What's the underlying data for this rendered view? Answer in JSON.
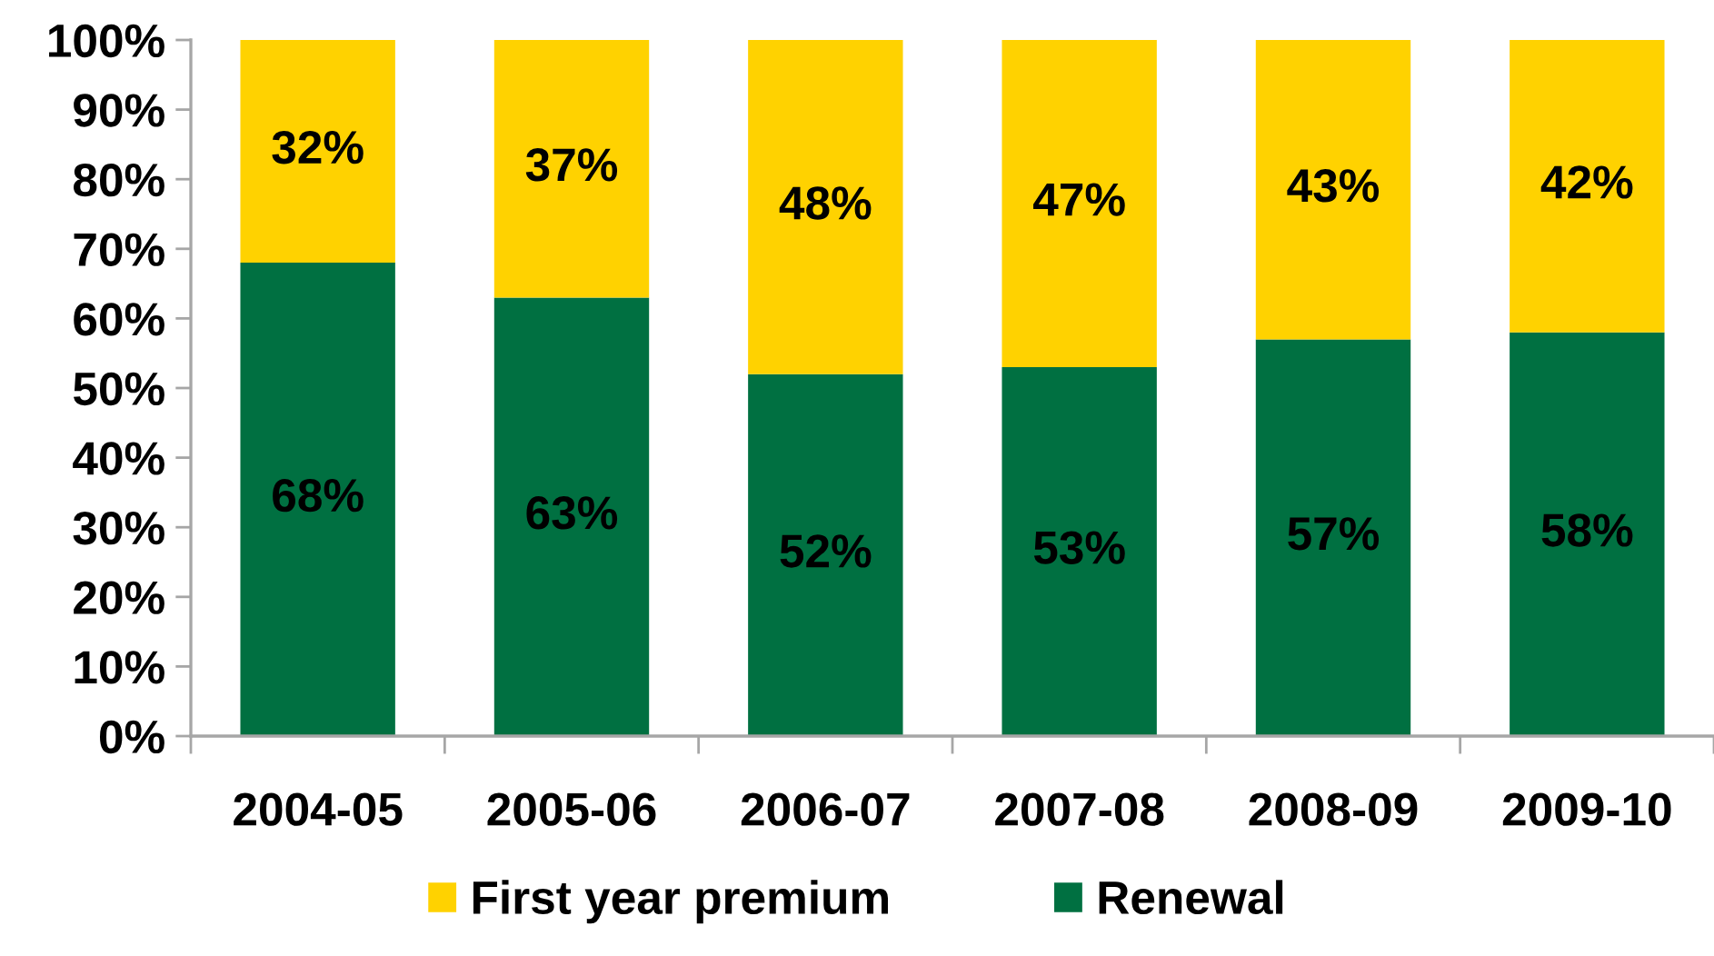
{
  "chart_data": {
    "type": "bar",
    "stacked": true,
    "categories": [
      "2004-05",
      "2005-06",
      "2006-07",
      "2007-08",
      "2008-09",
      "2009-10"
    ],
    "series": [
      {
        "name": "Renewal",
        "color": "#007041",
        "values": [
          68,
          63,
          52,
          53,
          57,
          58
        ],
        "value_labels": [
          "68%",
          "63%",
          "52%",
          "53%",
          "57%",
          "58%"
        ]
      },
      {
        "name": "First year premium",
        "color": "#ffd200",
        "values": [
          32,
          37,
          48,
          47,
          43,
          42
        ],
        "value_labels": [
          "32%",
          "37%",
          "48%",
          "47%",
          "43%",
          "42%"
        ]
      }
    ],
    "ylim": [
      0,
      100
    ],
    "yticks": [
      {
        "value": 0,
        "label": "0%"
      },
      {
        "value": 10,
        "label": "10%"
      },
      {
        "value": 20,
        "label": "20%"
      },
      {
        "value": 30,
        "label": "30%"
      },
      {
        "value": 40,
        "label": "40%"
      },
      {
        "value": 50,
        "label": "50%"
      },
      {
        "value": 60,
        "label": "60%"
      },
      {
        "value": 70,
        "label": "70%"
      },
      {
        "value": 80,
        "label": "80%"
      },
      {
        "value": 90,
        "label": "90%"
      },
      {
        "value": 100,
        "label": "100%"
      }
    ],
    "grid": false,
    "legend": "bottom"
  }
}
